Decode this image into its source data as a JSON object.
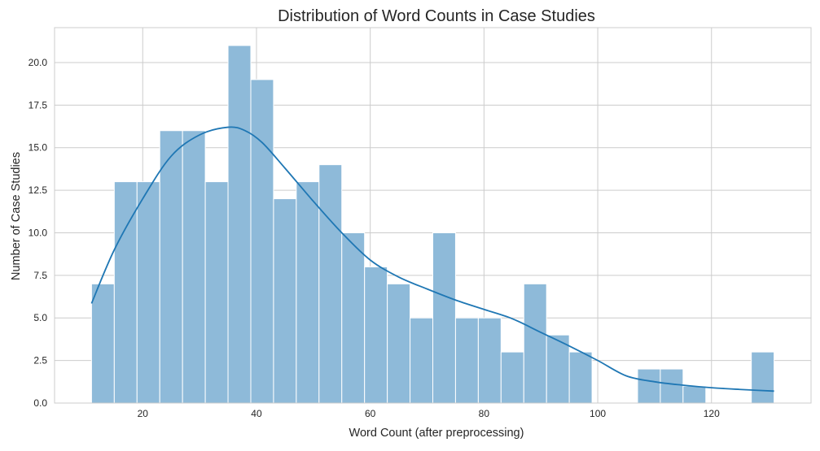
{
  "chart_data": {
    "type": "bar",
    "title": "Distribution of Word Counts in Case Studies",
    "xlabel": "Word Count (after preprocessing)",
    "ylabel": "Number of Case Studies",
    "xlim": [
      4.5,
      137.5
    ],
    "ylim": [
      0,
      22.05
    ],
    "xticks": [
      20,
      40,
      60,
      80,
      100,
      120
    ],
    "yticks": [
      0,
      2.5,
      5,
      7.5,
      10,
      12.5,
      15,
      17.5,
      20
    ],
    "xtick_labels": [
      "20",
      "40",
      "60",
      "80",
      "100",
      "120"
    ],
    "ytick_labels": [
      "0.0",
      "2.5",
      "5.0",
      "7.5",
      "10.0",
      "12.5",
      "15.0",
      "17.5",
      "20.0"
    ],
    "grid": true,
    "legend": "none",
    "bar_color": "#8ebad9",
    "bar_edge_color": "#ffffff",
    "kde_color": "#1f77b4",
    "bins": {
      "x_start": [
        11,
        15,
        19,
        23,
        27,
        31,
        35,
        39,
        43,
        47,
        51,
        55,
        59,
        63,
        67,
        71,
        75,
        79,
        83,
        87,
        91,
        95,
        99,
        103,
        107,
        111,
        115,
        119,
        123,
        127
      ],
      "x_end": [
        15,
        19,
        23,
        27,
        31,
        35,
        39,
        43,
        47,
        51,
        55,
        59,
        63,
        67,
        71,
        75,
        79,
        83,
        87,
        91,
        95,
        99,
        103,
        107,
        111,
        115,
        119,
        123,
        127,
        131
      ],
      "values": [
        7,
        13,
        13,
        16,
        16,
        13,
        21,
        19,
        12,
        13,
        14,
        10,
        8,
        7,
        5,
        10,
        5,
        5,
        3,
        7,
        4,
        3,
        0,
        0,
        2,
        2,
        1,
        0,
        0,
        3
      ]
    },
    "kde": {
      "x": [
        11,
        15,
        20,
        25,
        30,
        35,
        38,
        41,
        45,
        50,
        55,
        60,
        65,
        70,
        75,
        80,
        85,
        90,
        95,
        100,
        105,
        110,
        115,
        120,
        125,
        131
      ],
      "y": [
        5.85,
        9.0,
        12.0,
        14.5,
        15.75,
        16.2,
        16.0,
        15.3,
        13.8,
        11.85,
        10.0,
        8.4,
        7.4,
        6.7,
        6.05,
        5.5,
        4.95,
        4.15,
        3.35,
        2.5,
        1.6,
        1.25,
        1.05,
        0.9,
        0.8,
        0.7
      ]
    }
  }
}
